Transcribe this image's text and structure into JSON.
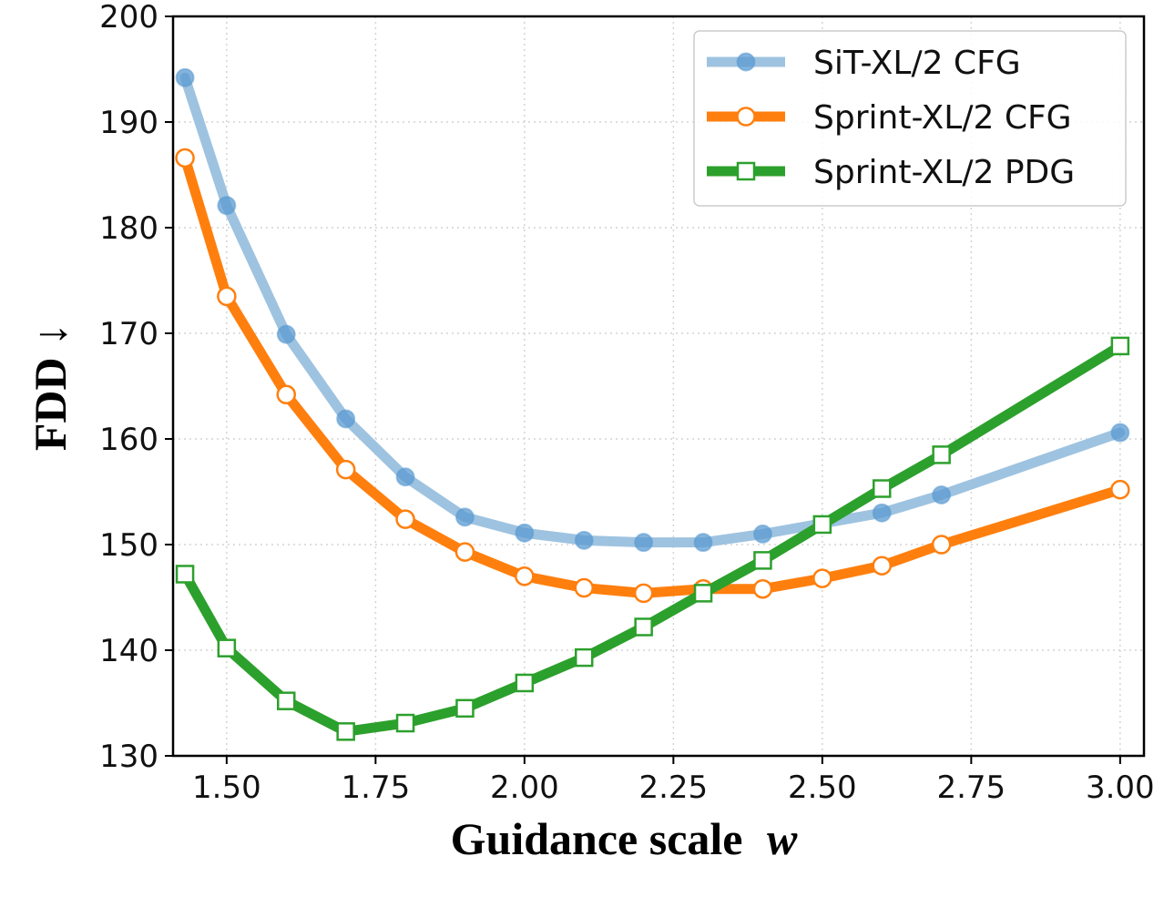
{
  "chart_data": {
    "type": "line",
    "title": "",
    "xlabel": "Guidance scale",
    "xlabel_var": "w",
    "ylabel": "FDD ↓",
    "xlim": [
      1.41,
      3.04
    ],
    "ylim": [
      130,
      200
    ],
    "xticks": [
      1.5,
      1.75,
      2.0,
      2.25,
      2.5,
      2.75,
      3.0
    ],
    "xtick_labels": [
      "1.50",
      "1.75",
      "2.00",
      "2.25",
      "2.50",
      "2.75",
      "3.00"
    ],
    "yticks": [
      130,
      140,
      150,
      160,
      170,
      180,
      190,
      200
    ],
    "ytick_labels": [
      "130",
      "140",
      "150",
      "160",
      "170",
      "180",
      "190",
      "200"
    ],
    "grid": true,
    "legend_position": "top-right",
    "series": [
      {
        "name": "SiT-XL/2 CFG",
        "color": "#9ec3e0",
        "marker": "filled-circle",
        "marker_face": "#5b9bd1",
        "x": [
          1.43,
          1.5,
          1.6,
          1.7,
          1.8,
          1.9,
          2.0,
          2.1,
          2.2,
          2.3,
          2.4,
          2.6,
          2.7,
          3.0
        ],
        "y": [
          194.2,
          182.1,
          169.9,
          161.9,
          156.4,
          152.6,
          151.1,
          150.4,
          150.2,
          150.2,
          151.0,
          153.0,
          154.7,
          160.6
        ]
      },
      {
        "name": "Sprint-XL/2 CFG",
        "color": "#ff7f0e",
        "marker": "open-circle",
        "marker_face": "#ffffff",
        "x": [
          1.43,
          1.5,
          1.6,
          1.7,
          1.8,
          1.9,
          2.0,
          2.1,
          2.2,
          2.3,
          2.4,
          2.5,
          2.6,
          2.7,
          3.0
        ],
        "y": [
          186.6,
          173.5,
          164.2,
          157.1,
          152.4,
          149.3,
          147.0,
          145.9,
          145.4,
          145.8,
          145.8,
          146.8,
          148.0,
          150.0,
          155.2
        ]
      },
      {
        "name": "Sprint-XL/2 PDG",
        "color": "#2ca02c",
        "marker": "open-square",
        "marker_face": "#ffffff",
        "x": [
          1.43,
          1.5,
          1.6,
          1.7,
          1.8,
          1.9,
          2.0,
          2.1,
          2.2,
          2.3,
          2.4,
          2.5,
          2.6,
          2.7,
          3.0
        ],
        "y": [
          147.2,
          140.2,
          135.2,
          132.3,
          133.1,
          134.5,
          136.9,
          139.3,
          142.2,
          145.4,
          148.5,
          151.9,
          155.3,
          158.5,
          168.8
        ]
      }
    ]
  }
}
